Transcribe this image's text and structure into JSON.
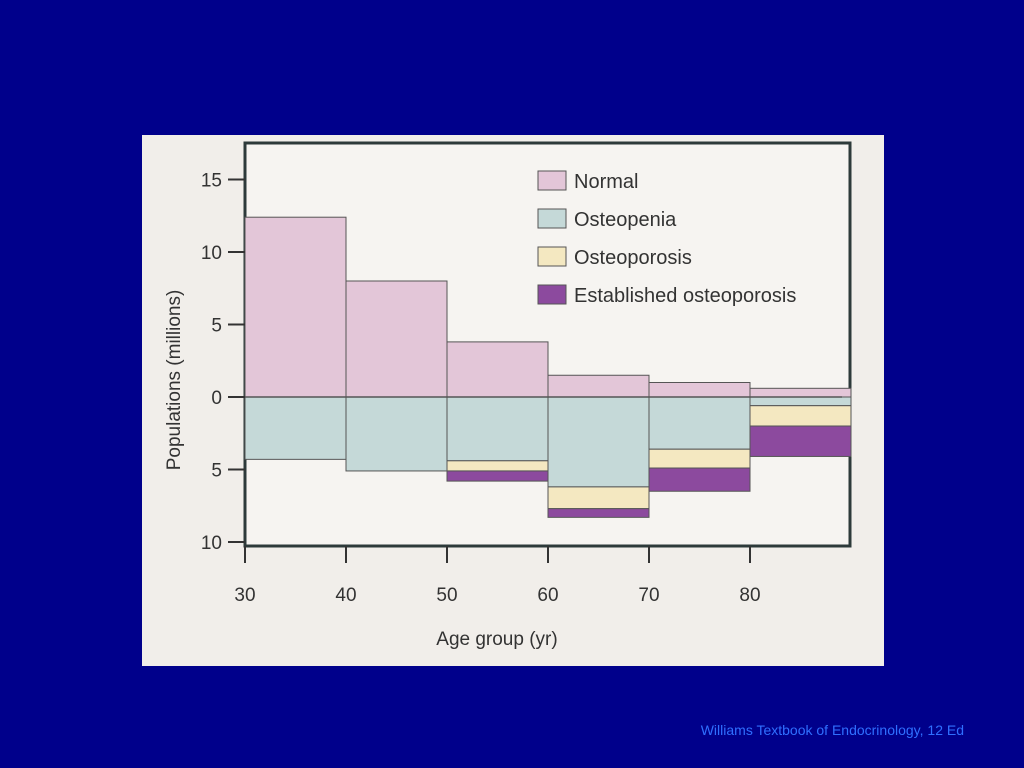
{
  "caption": "Williams Textbook of Endocrinology, 12 Ed",
  "chart_data": {
    "type": "bar",
    "subtype": "stepped mirrored stacked histogram",
    "xlabel": "Age group (yr)",
    "ylabel": "Populations (millions)",
    "x_ticks": [
      30,
      40,
      50,
      60,
      70,
      80
    ],
    "y_tick_labels_upper": [
      "15",
      "10",
      "5",
      "0"
    ],
    "y_tick_labels_lower": [
      "5",
      "10"
    ],
    "y_upper_ticks": [
      15,
      10,
      5,
      0
    ],
    "y_lower_ticks": [
      5,
      10
    ],
    "xlim": [
      30,
      90
    ],
    "ylim_upper": [
      0,
      15
    ],
    "ylim_lower": [
      0,
      10
    ],
    "age_groups": [
      [
        30,
        40
      ],
      [
        40,
        50
      ],
      [
        50,
        60
      ],
      [
        60,
        70
      ],
      [
        70,
        80
      ],
      [
        80,
        90
      ]
    ],
    "legend_position": "top-right",
    "series": [
      {
        "name": "Normal",
        "direction": "up",
        "color": "#e3c6d8",
        "values": [
          12.4,
          8.0,
          3.8,
          1.5,
          1.0,
          0.6
        ]
      },
      {
        "name": "Osteopenia",
        "direction": "down",
        "color": "#c5d9d8",
        "values": [
          4.3,
          5.1,
          4.4,
          6.2,
          3.6,
          0.6
        ]
      },
      {
        "name": "Osteoporosis",
        "direction": "down",
        "color": "#f4e8c1",
        "values": [
          0.0,
          0.0,
          0.7,
          1.5,
          1.3,
          1.4
        ]
      },
      {
        "name": "Established osteoporosis",
        "direction": "down",
        "color": "#8c4a9e",
        "values": [
          0.0,
          0.0,
          0.7,
          0.6,
          1.6,
          2.1
        ]
      }
    ]
  }
}
